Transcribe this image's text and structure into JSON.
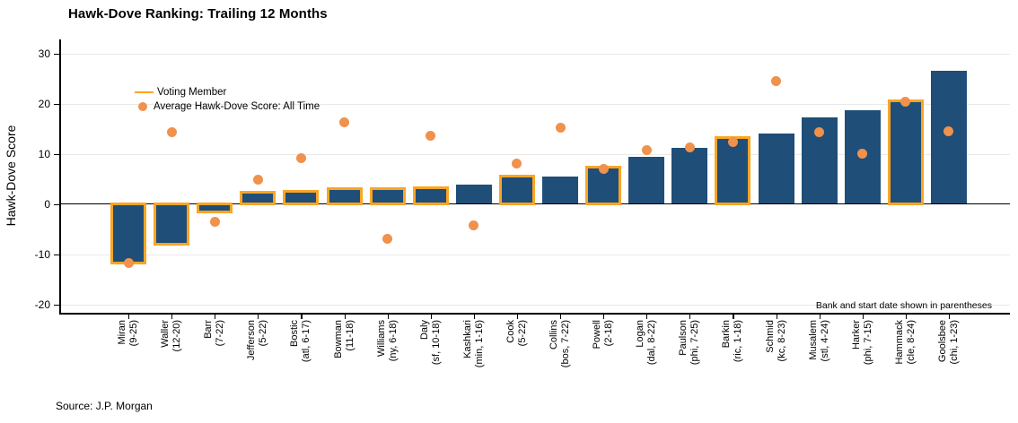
{
  "header": {
    "title": "Hawk-Dove Ranking: Trailing 12 Months"
  },
  "footer": {
    "source": "Source: J.P. Morgan"
  },
  "chart_data": {
    "type": "bar",
    "title": "Hawk-Dove Ranking: Trailing 12 Months",
    "ylabel": "Hawk-Dove Score",
    "ylim": [
      -22,
      33
    ],
    "yticks": [
      30,
      20,
      10,
      0,
      -10,
      -20
    ],
    "grid": "horizontal-light-gray, zero-line-black",
    "legend_position": "top-left-inside",
    "legend": [
      {
        "label": "Voting Member",
        "marker": "line",
        "color": "#FBA524"
      },
      {
        "label": "Average Hawk-Dove Score: All Time",
        "marker": "dot",
        "color": "#F0914C"
      }
    ],
    "note": "Bank and start date shown in parentheses",
    "bar_series_name": "Hawk-Dove Score: Trailing 12 Months",
    "dot_series_name": "Average Hawk-Dove Score: All Time",
    "members": [
      {
        "name": "Miran",
        "detail": "(9-25)",
        "bar": -11.5,
        "avg": -11.8,
        "voting": true
      },
      {
        "name": "Waller",
        "detail": "(12-20)",
        "bar": -7.8,
        "avg": 14.3,
        "voting": true
      },
      {
        "name": "Barr",
        "detail": "(7-22)",
        "bar": -1.4,
        "avg": -3.6,
        "voting": true
      },
      {
        "name": "Jefferson",
        "detail": "(5-22)",
        "bar": 2.0,
        "avg": 4.8,
        "voting": true
      },
      {
        "name": "Bostic",
        "detail": "(atl, 6-17)",
        "bar": 2.3,
        "avg": 9.1,
        "voting": true
      },
      {
        "name": "Bowman",
        "detail": "(11-18)",
        "bar": 2.7,
        "avg": 16.3,
        "voting": true
      },
      {
        "name": "Williams",
        "detail": "(ny, 6-18)",
        "bar": 2.7,
        "avg": -7.0,
        "voting": true
      },
      {
        "name": "Daly",
        "detail": "(sf, 10-18)",
        "bar": 3.0,
        "avg": 13.6,
        "voting": true
      },
      {
        "name": "Kashkari",
        "detail": "(min, 1-16)",
        "bar": 3.8,
        "avg": -4.2,
        "voting": false
      },
      {
        "name": "Cook",
        "detail": "(5-22)",
        "bar": 5.2,
        "avg": 8.1,
        "voting": true
      },
      {
        "name": "Collins",
        "detail": "(bos, 7-22)",
        "bar": 5.5,
        "avg": 15.2,
        "voting": false
      },
      {
        "name": "Powell",
        "detail": "(2-18)",
        "bar": 7.0,
        "avg": 6.9,
        "voting": true
      },
      {
        "name": "Logan",
        "detail": "(dal, 8-22)",
        "bar": 9.3,
        "avg": 10.7,
        "voting": false
      },
      {
        "name": "Paulson",
        "detail": "(phi, 7-25)",
        "bar": 11.2,
        "avg": 11.3,
        "voting": false
      },
      {
        "name": "Barkin",
        "detail": "(ric, 1-18)",
        "bar": 13.0,
        "avg": 12.4,
        "voting": true
      },
      {
        "name": "Schmid",
        "detail": "(kc, 8-23)",
        "bar": 14.0,
        "avg": 24.5,
        "voting": false
      },
      {
        "name": "Musalem",
        "detail": "(stl, 4-24)",
        "bar": 17.2,
        "avg": 14.3,
        "voting": false
      },
      {
        "name": "Harker",
        "detail": "(phi, 7-15)",
        "bar": 18.6,
        "avg": 10.0,
        "voting": false
      },
      {
        "name": "Hammack",
        "detail": "(cle, 8-24)",
        "bar": 20.3,
        "avg": 20.3,
        "voting": true
      },
      {
        "name": "Goolsbee",
        "detail": "(chi, 1-23)",
        "bar": 26.5,
        "avg": 14.5,
        "voting": false
      }
    ],
    "colors": {
      "bar_fill": "#1F4E79",
      "voting_outline": "#FBA524",
      "avg_dot": "#F0914C",
      "gridline": "#E9E9E9",
      "axis": "#000000"
    }
  }
}
